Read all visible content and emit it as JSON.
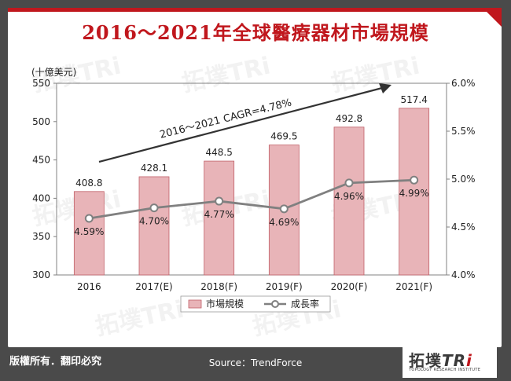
{
  "title": "2016～2021年全球醫療器材市場規模",
  "chart_data": {
    "type": "bar+line",
    "categories": [
      "2016",
      "2017(E)",
      "2018(F)",
      "2019(F)",
      "2020(F)",
      "2021(F)"
    ],
    "series": [
      {
        "name": "市場規模",
        "type": "bar",
        "axis": "left",
        "values": [
          408.8,
          428.1,
          448.5,
          469.5,
          492.8,
          517.4
        ],
        "color": "#e8b4b8"
      },
      {
        "name": "成長率",
        "type": "line",
        "axis": "right",
        "values": [
          4.59,
          4.7,
          4.77,
          4.69,
          4.96,
          4.99
        ],
        "color": "#808080"
      }
    ],
    "bar_labels": [
      "408.8",
      "428.1",
      "448.5",
      "469.5",
      "492.8",
      "517.4"
    ],
    "line_labels": [
      "4.59%",
      "4.70%",
      "4.77%",
      "4.69%",
      "4.96%",
      "4.99%"
    ],
    "y_left": {
      "unit": "(十億美元)",
      "min": 300,
      "max": 550,
      "ticks": [
        "300",
        "350",
        "400",
        "450",
        "500",
        "550"
      ]
    },
    "y_right": {
      "min": 4.0,
      "max": 6.0,
      "ticks": [
        "4.0%",
        "4.5%",
        "5.0%",
        "5.5%",
        "6.0%"
      ]
    },
    "annotation": "2016～2021 CAGR=4.78%",
    "legend": {
      "placement": "bottom",
      "items": [
        "市場規模",
        "成長率"
      ]
    },
    "grid": false
  },
  "footer": {
    "rights": "版權所有．翻印必究",
    "source": "Source：TrendForce"
  },
  "logo": {
    "main": "拓墣",
    "tri": "TR",
    "tri_i": "i",
    "sub": "TOPOLOGY RESEARCH INSTITUTE"
  },
  "watermark_text": "拓墣TRi"
}
